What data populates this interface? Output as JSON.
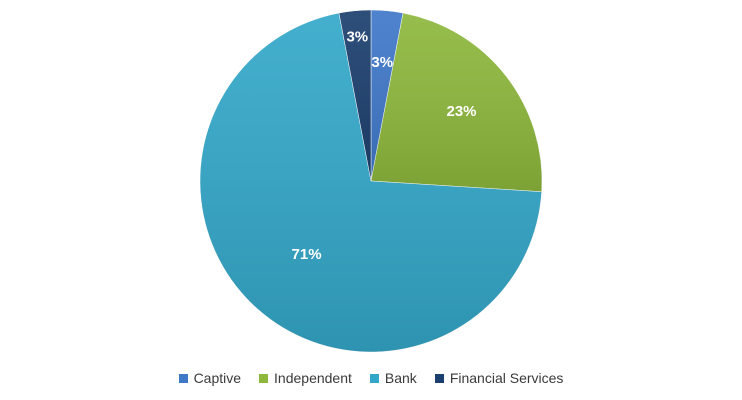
{
  "chart_data": {
    "type": "pie",
    "title": "",
    "slices": [
      {
        "label": "Captive",
        "value": 3,
        "display": "3%",
        "color": "#3f78c9"
      },
      {
        "label": "Independent",
        "value": 23,
        "display": "23%",
        "color": "#8db83c"
      },
      {
        "label": "Bank",
        "value": 71,
        "display": "71%",
        "color": "#33a7c9"
      },
      {
        "label": "Financial Services",
        "value": 3,
        "display": "3%",
        "color": "#1b3f6e"
      }
    ],
    "start_angle_deg": 0,
    "direction": "clockwise",
    "legend_position": "bottom"
  }
}
